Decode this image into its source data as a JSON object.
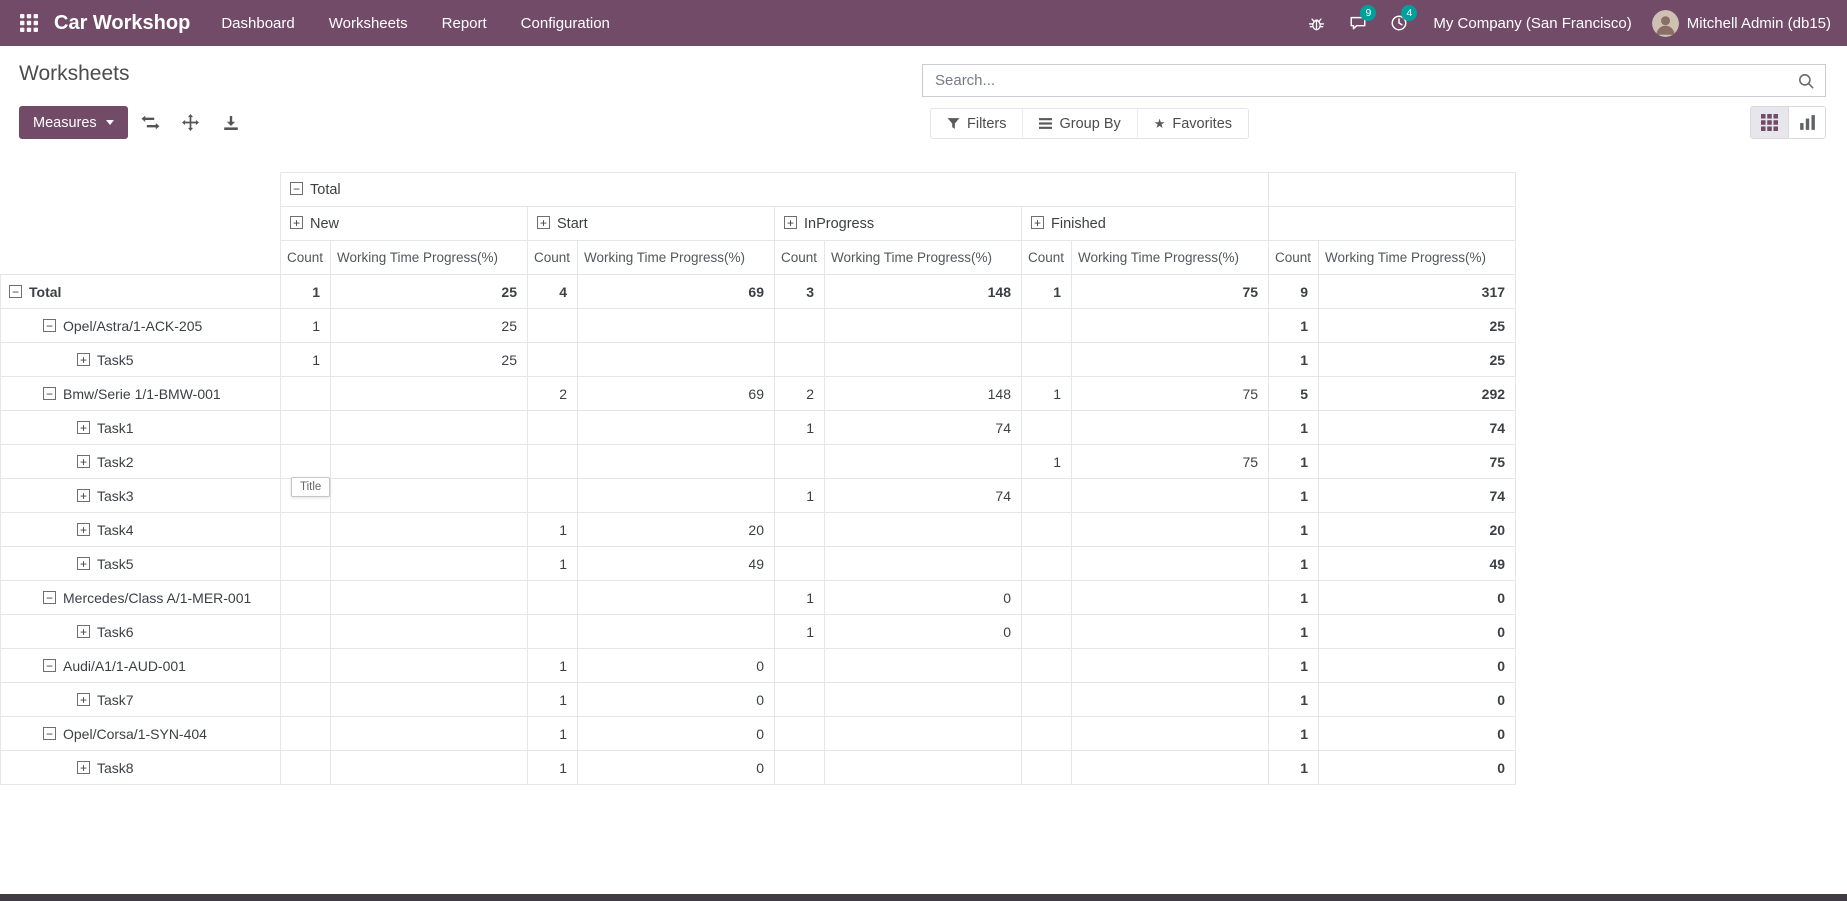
{
  "colors": {
    "brand": "#714B67",
    "badge": "#00A09D"
  },
  "navbar": {
    "app_name": "Car Workshop",
    "menu": [
      "Dashboard",
      "Worksheets",
      "Report",
      "Configuration"
    ],
    "messages_badge": "9",
    "activities_badge": "4",
    "company": "My Company (San Francisco)",
    "user": "Mitchell Admin (db15)"
  },
  "page": {
    "title": "Worksheets"
  },
  "search": {
    "placeholder": "Search..."
  },
  "controls": {
    "measures": "Measures",
    "filters": "Filters",
    "group_by": "Group By",
    "favorites": "Favorites"
  },
  "tooltip": "Title",
  "pivot": {
    "total_header": "Total",
    "groups": [
      {
        "label": "New",
        "sign": "+"
      },
      {
        "label": "Start",
        "sign": "+"
      },
      {
        "label": "InProgress",
        "sign": "+"
      },
      {
        "label": "Finished",
        "sign": "+"
      }
    ],
    "measures": [
      "Count",
      "Working Time Progress(%)"
    ],
    "rows": [
      {
        "label": "Total",
        "level": 0,
        "sign": "-",
        "bold": true,
        "cells": [
          "1",
          "25",
          "4",
          "69",
          "3",
          "148",
          "1",
          "75",
          "9",
          "317"
        ]
      },
      {
        "label": "Opel/Astra/1-ACK-205",
        "level": 1,
        "sign": "-",
        "cells": [
          "1",
          "25",
          "",
          "",
          "",
          "",
          "",
          "",
          "1",
          "25"
        ]
      },
      {
        "label": "Task5",
        "level": 2,
        "sign": "+",
        "cells": [
          "1",
          "25",
          "",
          "",
          "",
          "",
          "",
          "",
          "1",
          "25"
        ]
      },
      {
        "label": "Bmw/Serie 1/1-BMW-001",
        "level": 1,
        "sign": "-",
        "cells": [
          "",
          "",
          "2",
          "69",
          "2",
          "148",
          "1",
          "75",
          "5",
          "292"
        ]
      },
      {
        "label": "Task1",
        "level": 2,
        "sign": "+",
        "cells": [
          "",
          "",
          "",
          "",
          "1",
          "74",
          "",
          "",
          "1",
          "74"
        ]
      },
      {
        "label": "Task2",
        "level": 2,
        "sign": "+",
        "cells": [
          "",
          "",
          "",
          "",
          "",
          "",
          "1",
          "75",
          "1",
          "75"
        ]
      },
      {
        "label": "Task3",
        "level": 2,
        "sign": "+",
        "cells": [
          "",
          "",
          "",
          "",
          "1",
          "74",
          "",
          "",
          "1",
          "74"
        ]
      },
      {
        "label": "Task4",
        "level": 2,
        "sign": "+",
        "cells": [
          "",
          "",
          "1",
          "20",
          "",
          "",
          "",
          "",
          "1",
          "20"
        ]
      },
      {
        "label": "Task5",
        "level": 2,
        "sign": "+",
        "cells": [
          "",
          "",
          "1",
          "49",
          "",
          "",
          "",
          "",
          "1",
          "49"
        ]
      },
      {
        "label": "Mercedes/Class A/1-MER-001",
        "level": 1,
        "sign": "-",
        "cells": [
          "",
          "",
          "",
          "",
          "1",
          "0",
          "",
          "",
          "1",
          "0"
        ]
      },
      {
        "label": "Task6",
        "level": 2,
        "sign": "+",
        "cells": [
          "",
          "",
          "",
          "",
          "1",
          "0",
          "",
          "",
          "1",
          "0"
        ]
      },
      {
        "label": "Audi/A1/1-AUD-001",
        "level": 1,
        "sign": "-",
        "cells": [
          "",
          "",
          "1",
          "0",
          "",
          "",
          "",
          "",
          "1",
          "0"
        ]
      },
      {
        "label": "Task7",
        "level": 2,
        "sign": "+",
        "cells": [
          "",
          "",
          "1",
          "0",
          "",
          "",
          "",
          "",
          "1",
          "0"
        ]
      },
      {
        "label": "Opel/Corsa/1-SYN-404",
        "level": 1,
        "sign": "-",
        "cells": [
          "",
          "",
          "1",
          "0",
          "",
          "",
          "",
          "",
          "1",
          "0"
        ]
      },
      {
        "label": "Task8",
        "level": 2,
        "sign": "+",
        "cells": [
          "",
          "",
          "1",
          "0",
          "",
          "",
          "",
          "",
          "1",
          "0"
        ]
      }
    ]
  }
}
